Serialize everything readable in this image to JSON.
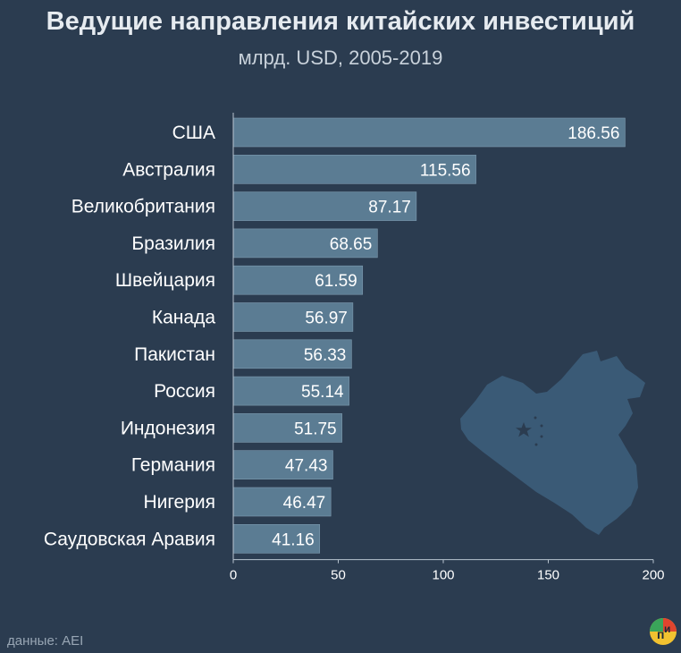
{
  "chart_data": {
    "type": "bar",
    "orientation": "horizontal",
    "title": "Ведущие направления китайских инвестиций",
    "subtitle": "млрд. USD, 2005-2019",
    "categories": [
      "США",
      "Австралия",
      "Великобритания",
      "Бразилия",
      "Швейцария",
      "Канада",
      "Пакистан",
      "Россия",
      "Индонезия",
      "Германия",
      "Нигерия",
      "Саудовская Аравия"
    ],
    "values": [
      186.56,
      115.56,
      87.17,
      68.65,
      61.59,
      56.97,
      56.33,
      55.14,
      51.75,
      47.43,
      46.47,
      41.16
    ],
    "value_labels": [
      "186.56",
      "115.56",
      "87.17",
      "68.65",
      "61.59",
      "56.97",
      "56.33",
      "55.14",
      "51.75",
      "47.43",
      "46.47",
      "41.16"
    ],
    "xlim": [
      0,
      200
    ],
    "xticks": [
      0,
      50,
      100,
      150,
      200
    ],
    "xtick_labels": [
      "0",
      "50",
      "100",
      "150",
      "200"
    ],
    "xlabel": "",
    "ylabel": "",
    "grid": false,
    "colors": {
      "bar": "#5b7c93",
      "bar_stroke": "#7d9bb0",
      "background": "#2b3c50",
      "map": "#3a5a76",
      "text": "#ffffff",
      "axis": "#b8c4cf"
    }
  },
  "source": "данные: AEI",
  "logo": {
    "icon": "pi-logo-icon",
    "text_left": "п",
    "text_right": "и",
    "colors": {
      "green": "#3aa55a",
      "red": "#e0452e",
      "yellow": "#f2c230"
    }
  }
}
